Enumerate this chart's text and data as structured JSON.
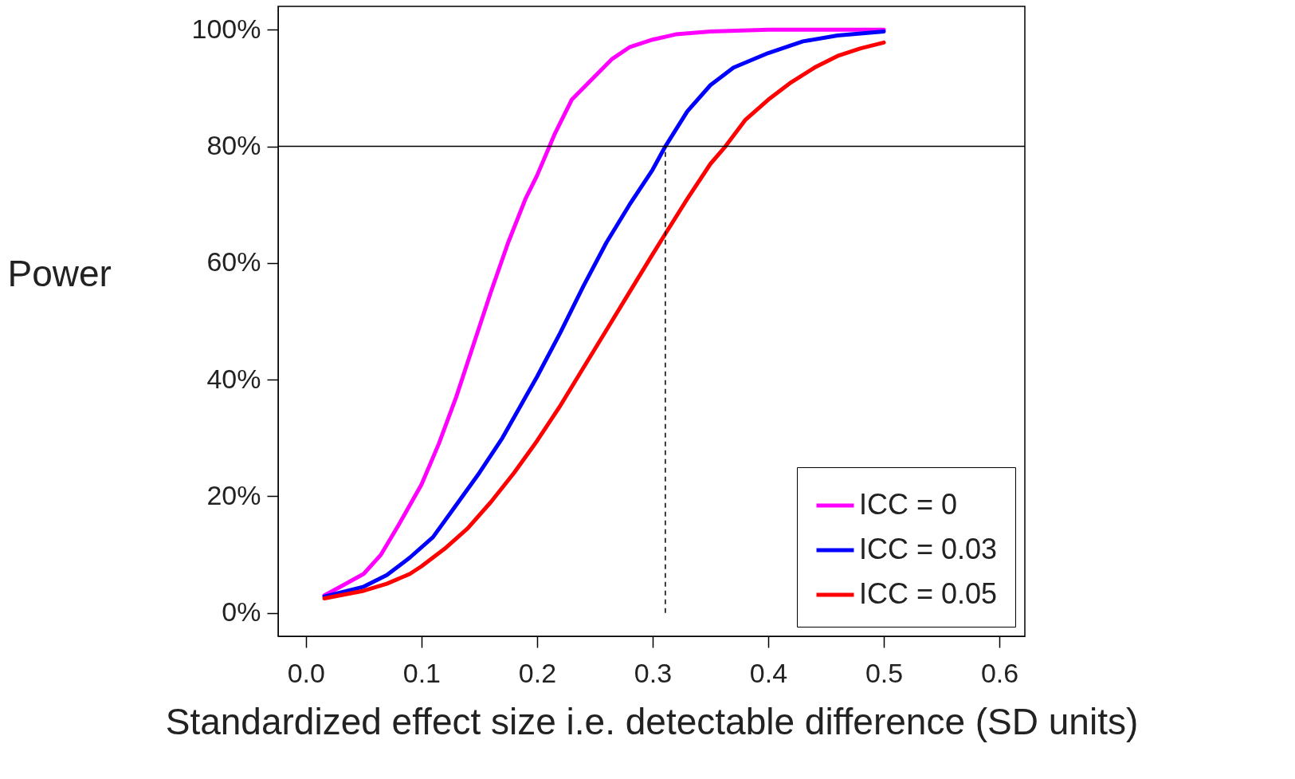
{
  "chart_data": {
    "type": "line",
    "xlabel": "Standardized effect size i.e. detectable difference (SD units)",
    "ylabel": "Power",
    "xlim": [
      -0.024,
      0.622
    ],
    "ylim": [
      -4,
      104
    ],
    "xticks": [
      {
        "value": 0,
        "label": "0.0"
      },
      0.1,
      0.2,
      0.3,
      0.4,
      0.5,
      0.6
    ],
    "yticks": [
      {
        "value": 0,
        "label": "0%"
      },
      {
        "value": 20,
        "label": "20%"
      },
      {
        "value": 40,
        "label": "40%"
      },
      {
        "value": 60,
        "label": "60%"
      },
      {
        "value": 80,
        "label": "80%"
      },
      {
        "value": 100,
        "label": "100%"
      }
    ],
    "grid": false,
    "legend": "bottom right",
    "ref_lines": [
      {
        "axis": "y",
        "value": 80,
        "color": "#000000",
        "line_style": "solid"
      },
      {
        "axis": "x",
        "value": 0.311,
        "color": "#000000",
        "line_style": "dashed"
      }
    ],
    "series": [
      {
        "name": "ICC = 0",
        "color": "#ff00ff",
        "x": [
          0.016,
          0.03,
          0.05,
          0.065,
          0.08,
          0.1,
          0.115,
          0.13,
          0.145,
          0.16,
          0.175,
          0.19,
          0.2,
          0.215,
          0.23,
          0.25,
          0.265,
          0.28,
          0.3,
          0.32,
          0.35,
          0.4,
          0.5
        ],
        "values": [
          3,
          4.5,
          6.7,
          10,
          15,
          22,
          29,
          37,
          46,
          55,
          63.5,
          71,
          75,
          82,
          88,
          92,
          95,
          97,
          98.3,
          99.2,
          99.7,
          100,
          100
        ]
      },
      {
        "name": "ICC = 0.03",
        "color": "#0000ff",
        "x": [
          0.016,
          0.05,
          0.07,
          0.09,
          0.11,
          0.13,
          0.15,
          0.17,
          0.19,
          0.2,
          0.22,
          0.24,
          0.26,
          0.28,
          0.3,
          0.311,
          0.33,
          0.35,
          0.37,
          0.4,
          0.43,
          0.46,
          0.5
        ],
        "values": [
          2.8,
          4.5,
          6.5,
          9.5,
          13,
          18.5,
          24,
          30,
          37,
          40.5,
          48,
          56,
          63.5,
          70,
          76,
          80,
          86,
          90.5,
          93.5,
          96,
          98,
          99,
          99.7
        ]
      },
      {
        "name": "ICC = 0.05",
        "color": "#ff0000",
        "x": [
          0.016,
          0.05,
          0.07,
          0.09,
          0.1,
          0.12,
          0.14,
          0.16,
          0.18,
          0.2,
          0.22,
          0.24,
          0.26,
          0.28,
          0.3,
          0.311,
          0.33,
          0.35,
          0.363,
          0.38,
          0.4,
          0.42,
          0.44,
          0.46,
          0.48,
          0.5
        ],
        "values": [
          2.5,
          3.8,
          5,
          6.7,
          8,
          11,
          14.5,
          19,
          24,
          29.5,
          35.5,
          42,
          48.5,
          55,
          61.5,
          65,
          71,
          77,
          80,
          84.5,
          88,
          91,
          93.5,
          95.5,
          96.8,
          97.8
        ]
      }
    ]
  }
}
